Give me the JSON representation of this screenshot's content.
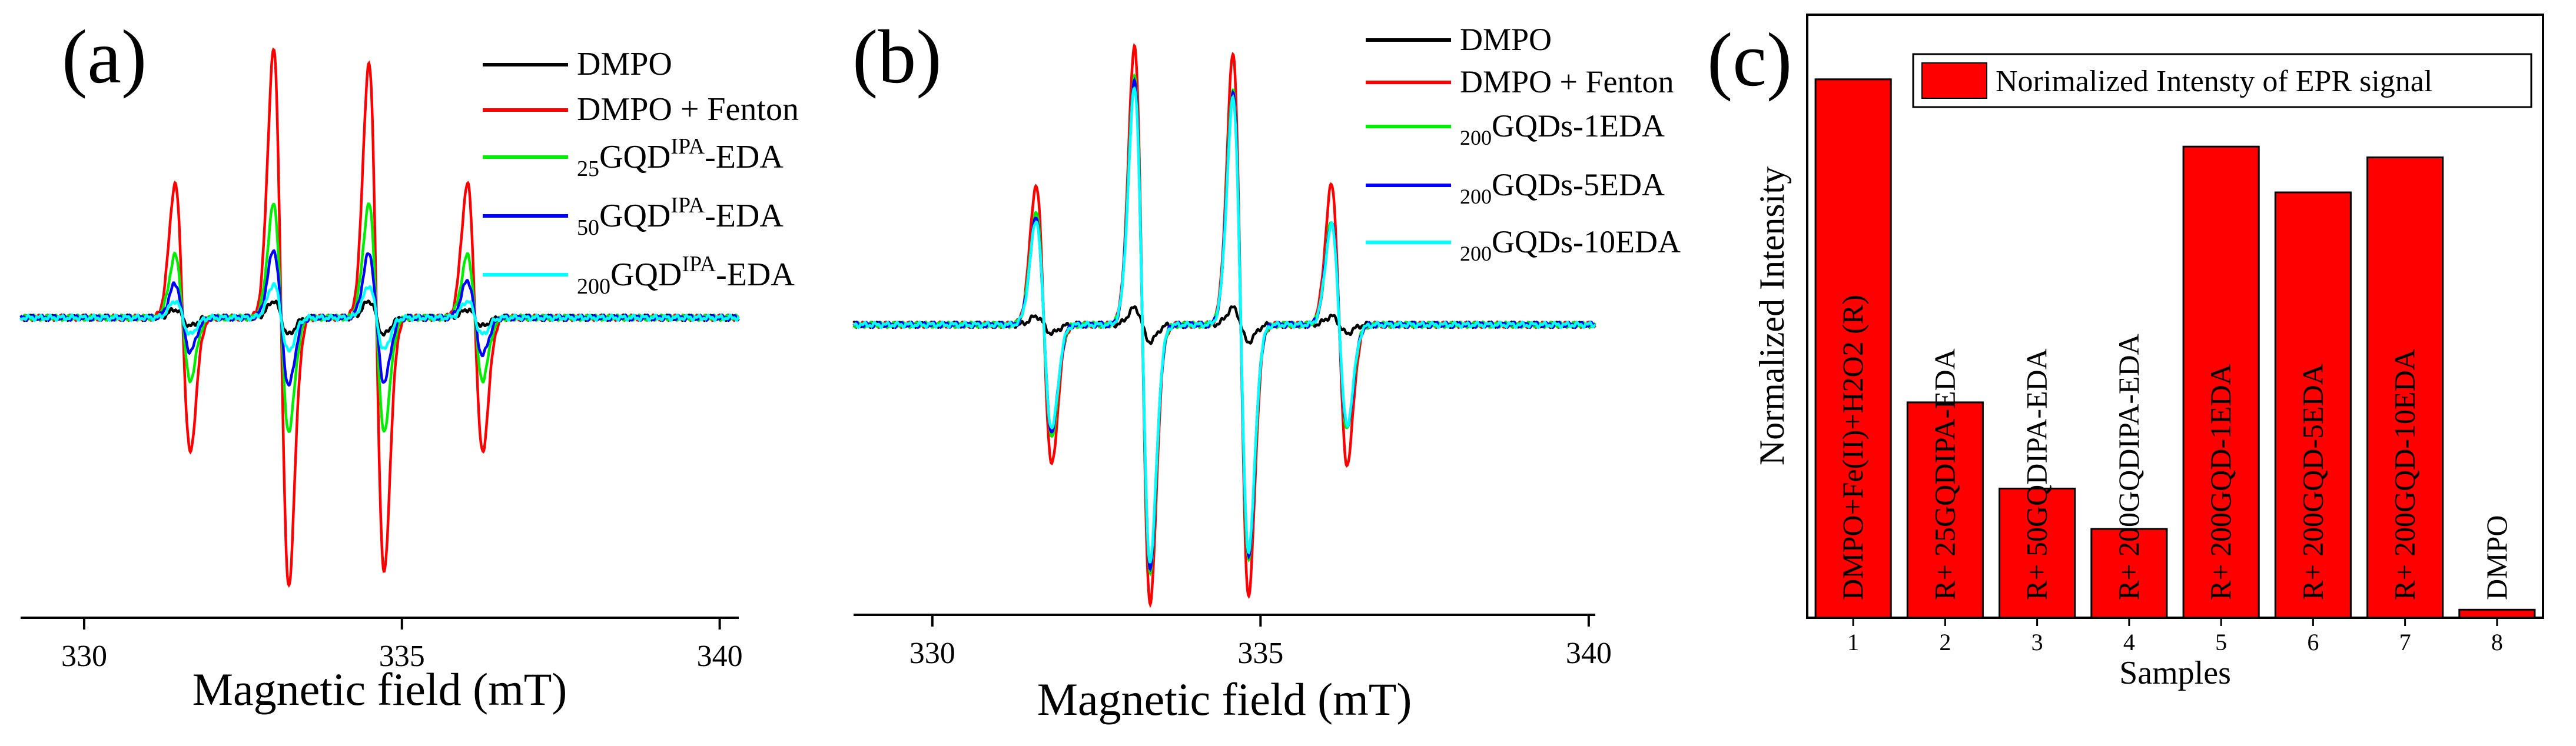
{
  "chart_data": [
    {
      "type": "line",
      "panel_label": "(a)",
      "xlabel": "Magnetic field (mT)",
      "ylabel": "",
      "xlim": [
        329,
        340.3
      ],
      "ylim": [
        -1.0,
        1.0
      ],
      "xticks": [
        330,
        335,
        340
      ],
      "grid": false,
      "y_axis_shown": false,
      "legend_position": "top-right",
      "peak_fields": [
        331.55,
        333.1,
        334.6,
        336.15
      ],
      "series": [
        {
          "name": "DMPO",
          "color": "#000000",
          "amplitude": 0.03,
          "intensity_ratio": [
            1,
            2,
            2,
            1
          ]
        },
        {
          "name": "DMPO + Fenton",
          "color": "#ff0000",
          "amplitude": 0.95,
          "intensity_ratio": [
            0.5,
            1,
            0.95,
            0.5
          ]
        },
        {
          "name_sub": "25",
          "name_main": "GQD",
          "name_sup": "IPA",
          "name_suffix": "-EDA",
          "color": "#00ee00",
          "amplitude": 0.4,
          "intensity_ratio": [
            0.55,
            1,
            1,
            0.55
          ]
        },
        {
          "name_sub": "50",
          "name_main": "GQD",
          "name_sup": "IPA",
          "name_suffix": "-EDA",
          "color": "#0000ff",
          "amplitude": 0.24,
          "intensity_ratio": [
            0.5,
            1,
            0.95,
            0.55
          ]
        },
        {
          "name_sub": "200",
          "name_main": "GQD",
          "name_sup": "IPA",
          "name_suffix": "-EDA",
          "color": "#00ffff",
          "amplitude": 0.12,
          "intensity_ratio": [
            0.5,
            1,
            0.95,
            0.5
          ]
        }
      ]
    },
    {
      "type": "line",
      "panel_label": "(b)",
      "xlabel": "Magnetic field (mT)",
      "ylabel": "",
      "xlim": [
        328.8,
        340.1
      ],
      "ylim": [
        -1.0,
        1.0
      ],
      "xticks": [
        330,
        335,
        340
      ],
      "grid": false,
      "y_axis_shown": false,
      "legend_position": "top-right",
      "peak_fields": [
        331.7,
        333.2,
        334.7,
        336.2
      ],
      "series": [
        {
          "name": "DMPO",
          "color": "#000000",
          "amplitude": 0.03,
          "intensity_ratio": [
            1,
            2,
            2,
            1
          ]
        },
        {
          "name": "DMPO + Fenton",
          "color": "#ff0000",
          "amplitude": 0.99,
          "intensity_ratio": [
            0.5,
            1,
            0.97,
            0.5
          ]
        },
        {
          "name_sub": "200",
          "name_main": "GQDs-1EDA",
          "color": "#00ee00",
          "amplitude": 0.88,
          "intensity_ratio": [
            0.45,
            1,
            0.95,
            0.42
          ]
        },
        {
          "name_sub": "200",
          "name_main": "GQDs-5EDA",
          "color": "#0000ff",
          "amplitude": 0.86,
          "intensity_ratio": [
            0.44,
            1,
            0.95,
            0.42
          ]
        },
        {
          "name_sub": "200",
          "name_main": "GQDs-10EDA",
          "color": "#00ffff",
          "amplitude": 0.84,
          "intensity_ratio": [
            0.44,
            1,
            0.95,
            0.42
          ]
        }
      ]
    },
    {
      "type": "bar",
      "panel_label": "(c)",
      "xlabel": "Samples",
      "ylabel": "Normalized Intensity",
      "ylim": [
        0,
        1.12
      ],
      "y_ticks_shown": false,
      "legend_position": "top",
      "series_name": "Norimalized Intensty of EPR signal",
      "bar_color": "#ff0000",
      "categories": [
        "1",
        "2",
        "3",
        "4",
        "5",
        "6",
        "7",
        "8"
      ],
      "values": [
        1.0,
        0.4,
        0.24,
        0.165,
        0.875,
        0.79,
        0.855,
        0.015
      ],
      "bar_labels": [
        "DMPO+Fe(II)+H2O2 (R)",
        "R+ 25GQDIPA-EDA",
        "R+ 50GQDIPA-EDA",
        "R+ 200GQDIPA-EDA",
        "R+ 200GQD-1EDA",
        "R+ 200GQD-5EDA",
        "R+ 200GQD-10EDA",
        "DMPO"
      ]
    }
  ]
}
